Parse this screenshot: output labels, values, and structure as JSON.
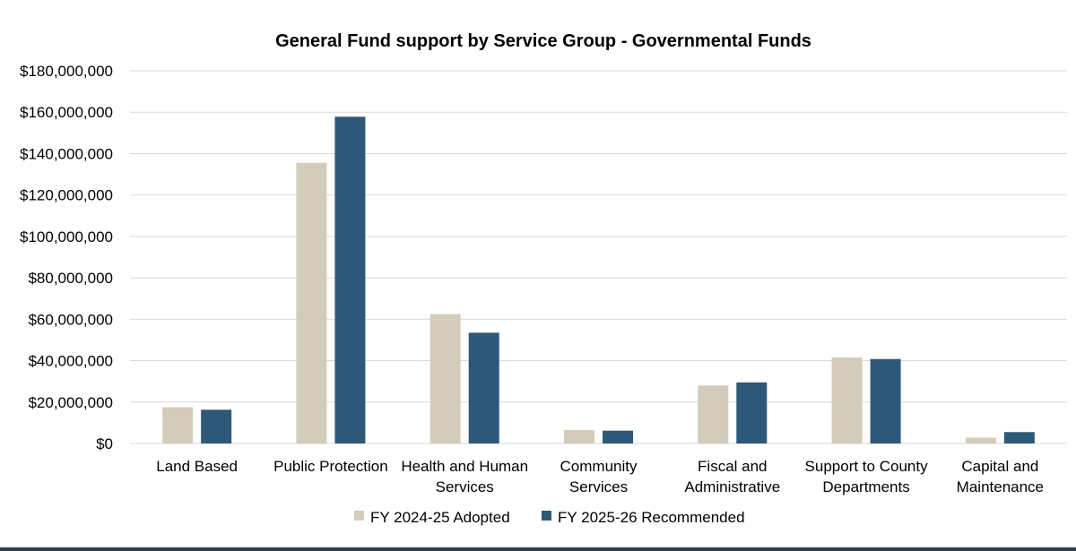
{
  "chart_data": {
    "type": "bar",
    "title": "General Fund support by Service Group - Governmental Funds",
    "xlabel": "",
    "ylabel": "",
    "categories": [
      [
        "Land Based"
      ],
      [
        "Public Protection"
      ],
      [
        "Health and Human",
        "Services"
      ],
      [
        "Community",
        "Services"
      ],
      [
        "Fiscal and",
        "Administrative"
      ],
      [
        "Support to County",
        "Departments"
      ],
      [
        "Capital and",
        "Maintenance"
      ]
    ],
    "series": [
      {
        "name": "FY 2024-25 Adopted",
        "color": "#d3ccbb",
        "values": [
          17500000,
          135500000,
          62500000,
          6500000,
          28000000,
          41500000,
          2800000
        ]
      },
      {
        "name": "FY 2025-26 Recommended",
        "color": "#2e5878",
        "values": [
          16300000,
          157800000,
          53500000,
          6200000,
          29500000,
          40800000,
          5500000
        ]
      }
    ],
    "ylim": [
      0,
      180000000
    ],
    "yticks": [
      0,
      20000000,
      40000000,
      60000000,
      80000000,
      100000000,
      120000000,
      140000000,
      160000000,
      180000000
    ],
    "ytick_labels": [
      "$0",
      "$20,000,000",
      "$40,000,000",
      "$60,000,000",
      "$80,000,000",
      "$100,000,000",
      "$120,000,000",
      "$140,000,000",
      "$160,000,000",
      "$180,000,000"
    ],
    "grid": true,
    "legend": "bottom-center",
    "gridline_color": "#d9d9d9"
  }
}
